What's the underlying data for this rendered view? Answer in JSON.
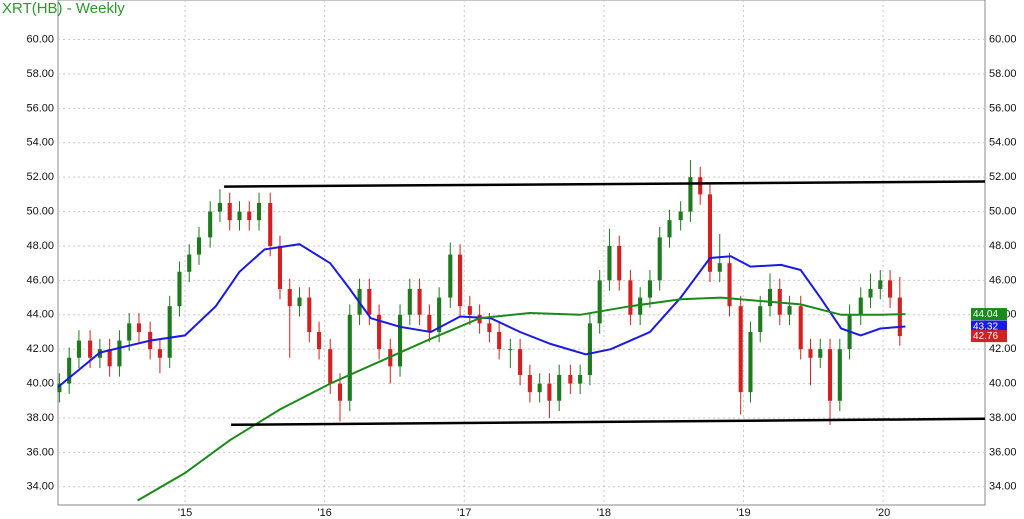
{
  "chart_data": {
    "type": "candlestick",
    "title": "XRT(HB) - Weekly",
    "x": [
      2014.1,
      2014.17,
      2014.24,
      2014.32,
      2014.39,
      2014.46,
      2014.53,
      2014.6,
      2014.67,
      2014.75,
      2014.82,
      2014.89,
      2014.96,
      2015.03,
      2015.1,
      2015.18,
      2015.25,
      2015.32,
      2015.39,
      2015.46,
      2015.53,
      2015.61,
      2015.68,
      2015.75,
      2015.82,
      2015.89,
      2015.96,
      2016.04,
      2016.11,
      2016.18,
      2016.25,
      2016.32,
      2016.39,
      2016.47,
      2016.54,
      2016.61,
      2016.68,
      2016.75,
      2016.82,
      2016.9,
      2016.97,
      2017.04,
      2017.11,
      2017.18,
      2017.25,
      2017.33,
      2017.4,
      2017.47,
      2017.54,
      2017.61,
      2017.68,
      2017.76,
      2017.83,
      2017.9,
      2017.97,
      2018.04,
      2018.11,
      2018.19,
      2018.26,
      2018.33,
      2018.4,
      2018.47,
      2018.55,
      2018.62,
      2018.69,
      2018.76,
      2018.83,
      2018.9,
      2018.98,
      2019.05,
      2019.12,
      2019.19,
      2019.26,
      2019.33,
      2019.41,
      2019.48,
      2019.55,
      2019.62,
      2019.69,
      2019.76,
      2019.84,
      2019.91,
      2019.98,
      2020.05,
      2020.12
    ],
    "open": [
      39.5,
      40.0,
      41.5,
      42.5,
      41.5,
      42.0,
      41.0,
      42.5,
      43.5,
      43.0,
      42.0,
      41.5,
      44.5,
      46.5,
      47.5,
      48.5,
      50.0,
      50.5,
      49.5,
      50.0,
      49.5,
      50.5,
      48.0,
      45.5,
      44.5,
      45.0,
      43.0,
      42.0,
      40.0,
      39.0,
      44.0,
      45.5,
      44.0,
      42.0,
      41.0,
      44.0,
      45.5,
      44.0,
      43.0,
      45.0,
      47.5,
      44.5,
      44.0,
      43.5,
      43.0,
      42.0,
      42.0,
      40.5,
      39.5,
      40.0,
      39.0,
      40.5,
      40.0,
      40.5,
      43.5,
      46.0,
      48.0,
      46.0,
      44.0,
      45.0,
      46.0,
      48.5,
      49.5,
      50.0,
      52.0,
      51.0,
      46.5,
      47.0,
      44.5,
      39.5,
      43.0,
      44.5,
      45.5,
      44.0,
      44.5,
      42.0,
      41.5,
      42.0,
      39.0,
      42.0,
      44.0,
      45.0,
      45.5,
      46.0,
      45.0
    ],
    "high": [
      40.6,
      42.1,
      43.1,
      43.1,
      42.6,
      42.6,
      43.1,
      44.1,
      44.1,
      43.6,
      42.6,
      45.1,
      47.1,
      48.1,
      49.1,
      50.6,
      51.3,
      51.1,
      50.6,
      50.6,
      51.1,
      51.1,
      48.6,
      46.1,
      45.6,
      45.6,
      43.6,
      42.6,
      40.6,
      44.6,
      46.1,
      46.1,
      44.6,
      42.6,
      44.6,
      46.1,
      46.1,
      44.6,
      45.6,
      48.2,
      48.1,
      45.1,
      44.6,
      44.1,
      43.6,
      42.6,
      42.6,
      41.1,
      40.6,
      40.6,
      41.1,
      41.1,
      41.1,
      44.1,
      46.6,
      49.0,
      48.6,
      46.6,
      45.6,
      46.6,
      49.1,
      50.1,
      50.6,
      53.0,
      52.6,
      51.6,
      48.7,
      47.6,
      45.1,
      43.6,
      45.1,
      46.4,
      46.1,
      45.1,
      45.1,
      42.6,
      42.6,
      42.6,
      42.6,
      44.6,
      45.6,
      46.4,
      46.6,
      46.6,
      46.2
    ],
    "low": [
      38.9,
      39.4,
      40.9,
      40.9,
      40.9,
      40.4,
      40.4,
      41.9,
      42.4,
      41.4,
      40.6,
      40.9,
      43.9,
      45.9,
      46.9,
      47.9,
      49.4,
      48.9,
      48.9,
      48.9,
      48.9,
      47.4,
      44.9,
      41.5,
      43.9,
      42.4,
      41.4,
      39.4,
      37.8,
      38.4,
      43.4,
      43.4,
      41.4,
      40.0,
      40.4,
      43.4,
      43.4,
      42.4,
      42.4,
      44.4,
      43.9,
      43.4,
      42.9,
      42.4,
      41.4,
      40.9,
      39.9,
      38.9,
      38.9,
      38.0,
      38.4,
      39.4,
      39.4,
      39.9,
      42.9,
      45.4,
      45.4,
      43.4,
      43.4,
      44.4,
      45.4,
      47.9,
      48.9,
      49.4,
      50.4,
      45.9,
      45.9,
      43.9,
      38.2,
      38.9,
      42.4,
      43.9,
      43.4,
      43.4,
      41.4,
      39.9,
      40.9,
      37.6,
      38.4,
      41.4,
      43.4,
      44.4,
      44.9,
      44.4,
      42.2
    ],
    "close": [
      40.0,
      41.5,
      42.5,
      41.5,
      42.0,
      41.0,
      42.5,
      43.5,
      43.0,
      42.0,
      41.5,
      44.5,
      46.5,
      47.5,
      48.5,
      50.0,
      50.5,
      49.5,
      50.0,
      49.5,
      50.5,
      48.0,
      45.5,
      44.5,
      45.0,
      43.0,
      42.0,
      40.0,
      39.0,
      44.0,
      45.5,
      44.0,
      42.0,
      41.0,
      44.0,
      45.5,
      44.0,
      43.0,
      45.0,
      47.5,
      44.5,
      44.0,
      43.5,
      43.0,
      42.0,
      42.0,
      40.5,
      39.5,
      40.0,
      39.0,
      40.5,
      40.0,
      40.5,
      43.5,
      46.0,
      48.0,
      46.0,
      44.0,
      45.0,
      46.0,
      48.5,
      49.5,
      50.0,
      52.0,
      51.0,
      46.5,
      47.0,
      44.5,
      39.5,
      43.0,
      44.5,
      45.5,
      44.0,
      44.5,
      42.0,
      41.5,
      42.0,
      39.0,
      42.0,
      44.0,
      45.0,
      45.5,
      46.0,
      45.0,
      42.76
    ],
    "up_color": "#1e7a1e",
    "down_color": "#d42020",
    "series": [
      {
        "color": "#1a1ae0",
        "x": [
          2014.09,
          2014.39,
          2014.75,
          2015.0,
          2015.22,
          2015.39,
          2015.57,
          2015.82,
          2016.04,
          2016.18,
          2016.33,
          2016.54,
          2016.76,
          2016.97,
          2017.19,
          2017.4,
          2017.62,
          2017.87,
          2018.05,
          2018.33,
          2018.55,
          2018.76,
          2018.91,
          2019.05,
          2019.27,
          2019.41,
          2019.55,
          2019.7,
          2019.84,
          2019.98,
          2020.16
        ],
        "values": [
          39.8,
          41.8,
          42.5,
          42.8,
          44.5,
          46.5,
          47.8,
          48.1,
          47.0,
          45.5,
          43.8,
          43.3,
          43.0,
          43.9,
          43.8,
          43.0,
          42.3,
          41.7,
          42.0,
          43.0,
          45.0,
          47.3,
          47.4,
          46.8,
          46.9,
          46.6,
          45.0,
          43.2,
          42.8,
          43.2,
          43.32
        ]
      },
      {
        "color": "#1a8a1a",
        "x": [
          2014.66,
          2015.0,
          2015.32,
          2015.68,
          2016.04,
          2016.4,
          2016.76,
          2017.11,
          2017.47,
          2017.83,
          2018.19,
          2018.55,
          2018.84,
          2019.12,
          2019.41,
          2019.7,
          2019.98,
          2020.16
        ],
        "values": [
          33.2,
          34.8,
          36.7,
          38.5,
          40.0,
          41.3,
          42.6,
          43.8,
          44.1,
          44.0,
          44.5,
          44.9,
          45.0,
          44.8,
          44.6,
          44.0,
          44.0,
          44.04
        ]
      }
    ],
    "trendlines": [
      {
        "color": "#000000",
        "x": [
          2015.28,
          2020.73
        ],
        "values": [
          51.45,
          51.75
        ]
      },
      {
        "color": "#000000",
        "x": [
          2015.33,
          2020.73
        ],
        "values": [
          37.6,
          37.95
        ]
      }
    ],
    "xlim": [
      2014.09,
      2020.73
    ],
    "xticks": [
      {
        "value": 2015,
        "label": "'15"
      },
      {
        "value": 2016,
        "label": "'16"
      },
      {
        "value": 2017,
        "label": "'17"
      },
      {
        "value": 2018,
        "label": "'18"
      },
      {
        "value": 2019,
        "label": "'19"
      },
      {
        "value": 2020,
        "label": "'20"
      }
    ],
    "ylim": [
      32.94,
      62.3
    ],
    "yticks": [
      {
        "value": 34,
        "label": "34.00"
      },
      {
        "value": 36,
        "label": "36.00"
      },
      {
        "value": 38,
        "label": "38.00"
      },
      {
        "value": 40,
        "label": "40.00"
      },
      {
        "value": 42,
        "label": "42.00"
      },
      {
        "value": 44,
        "label": "44.00"
      },
      {
        "value": 46,
        "label": "46.00"
      },
      {
        "value": 48,
        "label": "48.00"
      },
      {
        "value": 50,
        "label": "50.00"
      },
      {
        "value": 52,
        "label": "52.00"
      },
      {
        "value": 54,
        "label": "54.00"
      },
      {
        "value": 56,
        "label": "56.00"
      },
      {
        "value": 58,
        "label": "58.00"
      },
      {
        "value": 60,
        "label": "60.00"
      }
    ],
    "grid": true
  }
}
